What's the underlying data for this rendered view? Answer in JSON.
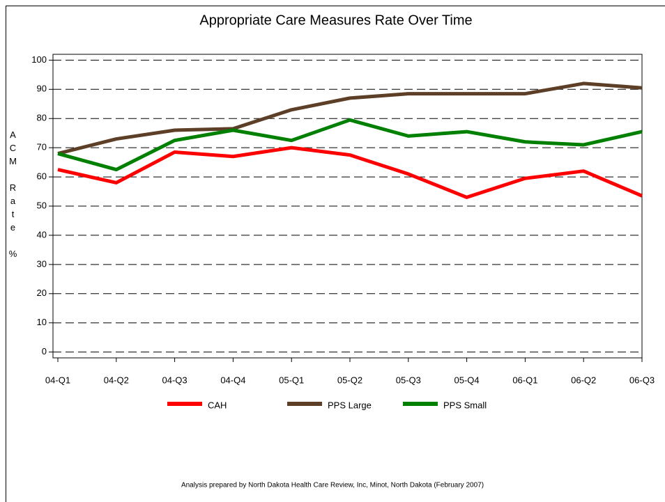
{
  "chart_data": {
    "type": "line",
    "title": "Appropriate Care Measures Rate Over Time",
    "y_label": "ACM Rate %",
    "footnote": "Analysis prepared by North Dakota Health Care Review, Inc, Minot, North Dakota (February 2007)",
    "categories": [
      "04-Q1",
      "04-Q2",
      "04-Q3",
      "04-Q4",
      "05-Q1",
      "05-Q2",
      "05-Q3",
      "05-Q4",
      "06-Q1",
      "06-Q2",
      "06-Q3"
    ],
    "series": [
      {
        "name": "CAH",
        "color": "#ff0000",
        "values": [
          62.5,
          58,
          68.5,
          67,
          70,
          67.5,
          61,
          53,
          59.5,
          62,
          53.5
        ]
      },
      {
        "name": "PPS Large",
        "color": "#5c3f26",
        "values": [
          68,
          73,
          76,
          76.5,
          83,
          87,
          88.5,
          88.5,
          88.5,
          92,
          90.5
        ]
      },
      {
        "name": "PPS Small",
        "color": "#008000",
        "values": [
          68,
          62.5,
          72.5,
          76,
          72.5,
          79.5,
          74,
          75.5,
          72,
          71,
          75.5
        ]
      }
    ],
    "ylim": [
      -2,
      102
    ],
    "yticks": [
      0,
      10,
      20,
      30,
      40,
      50,
      60,
      70,
      80,
      90,
      100
    ],
    "grid": true
  }
}
